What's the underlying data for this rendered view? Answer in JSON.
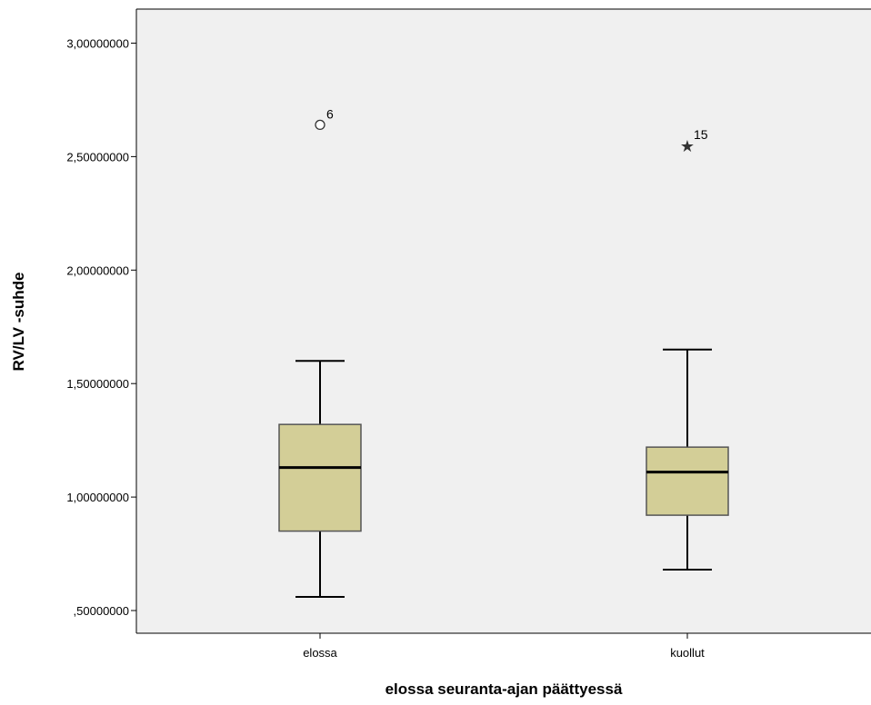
{
  "chart_data": {
    "type": "boxplot",
    "title": "",
    "xlabel": "elossa seuranta-ajan päättyessä",
    "ylabel": "RV/LV -suhde",
    "ylim": [
      0.4,
      3.15
    ],
    "yticks": [
      0.5,
      1.0,
      1.5,
      2.0,
      2.5,
      3.0
    ],
    "ytick_labels": [
      ",50000000",
      "1,00000000",
      "1,50000000",
      "2,00000000",
      "2,50000000",
      "3,00000000"
    ],
    "grid": false,
    "legend": "none",
    "colors": {
      "plot_background": "#f0f0f0",
      "box_fill": "#d3ce97",
      "box_stroke": "#555555",
      "line": "#000000"
    },
    "categories": [
      "elossa",
      "kuollut"
    ],
    "boxes": [
      {
        "category": "elossa",
        "whisker_low": 0.56,
        "q1": 0.85,
        "median": 1.13,
        "q3": 1.32,
        "whisker_high": 1.6,
        "outliers": [
          {
            "value": 2.64,
            "label": "6",
            "marker": "circle"
          }
        ]
      },
      {
        "category": "kuollut",
        "whisker_low": 0.68,
        "q1": 0.92,
        "median": 1.11,
        "q3": 1.22,
        "whisker_high": 1.65,
        "outliers": [
          {
            "value": 2.55,
            "label": "15",
            "marker": "star"
          }
        ]
      }
    ]
  }
}
